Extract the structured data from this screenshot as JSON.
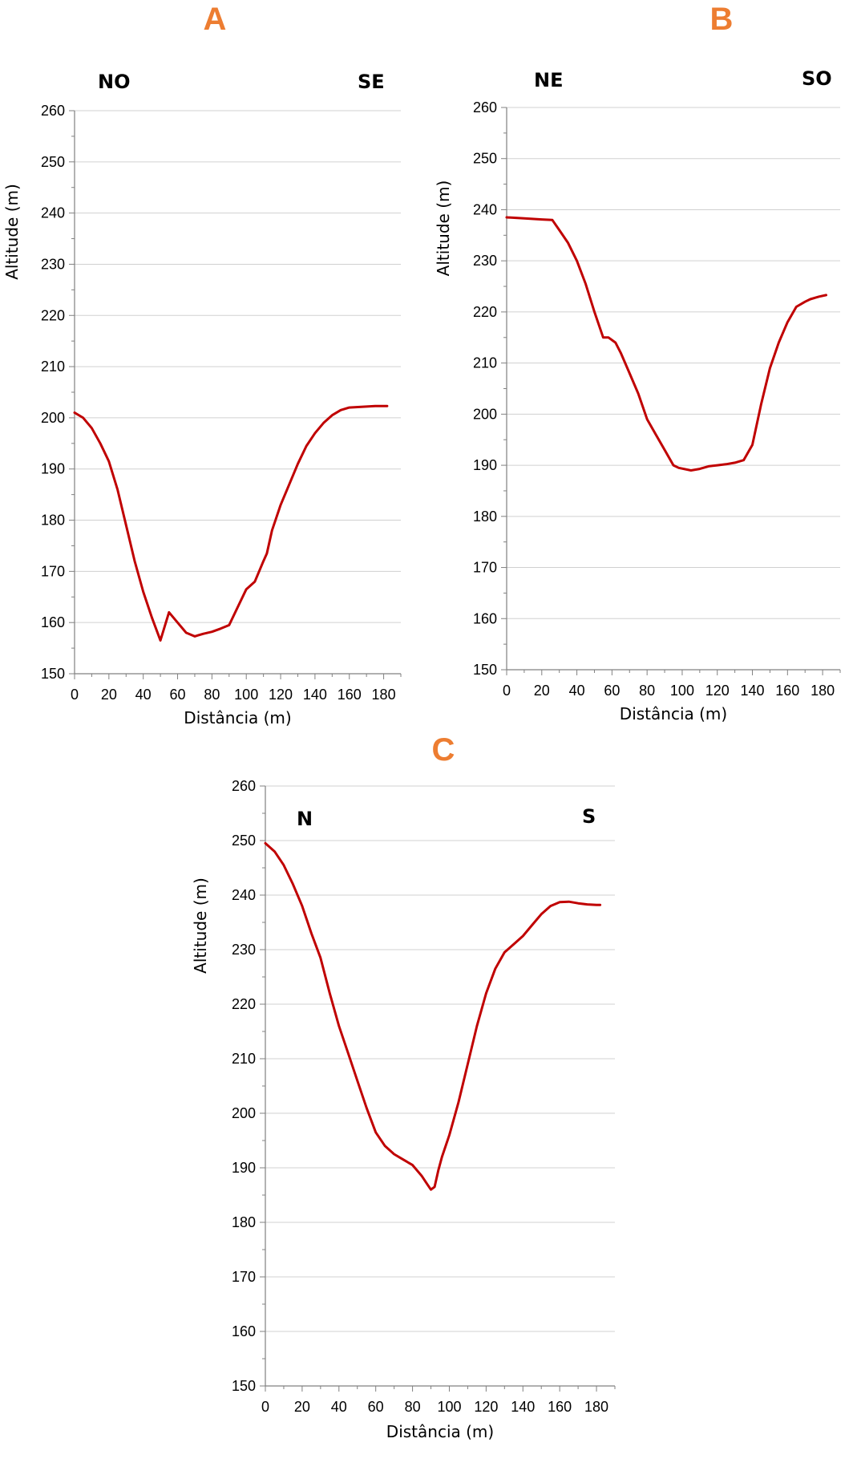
{
  "colors": {
    "line": "#C00000",
    "letter": "#ED7D31",
    "grid": "#D0D0D0",
    "axis": "#808080"
  },
  "chart_data": [
    {
      "panel": "A",
      "type": "line",
      "left_label": "NO",
      "right_label": "SE",
      "xlabel": "Distância (m)",
      "ylabel": "Altitude (m)",
      "xlim": [
        0,
        190
      ],
      "ylim": [
        150,
        260
      ],
      "xticks": [
        0,
        20,
        40,
        60,
        80,
        100,
        120,
        140,
        160,
        180
      ],
      "yticks": [
        150,
        160,
        170,
        180,
        190,
        200,
        210,
        220,
        230,
        240,
        250,
        260
      ],
      "grid": true,
      "series": [
        {
          "x": [
            0,
            5,
            10,
            15,
            20,
            25,
            30,
            35,
            40,
            45,
            50,
            55,
            60,
            65,
            70,
            72,
            75,
            80,
            85,
            90,
            95,
            100,
            105,
            110,
            112,
            115,
            120,
            125,
            130,
            135,
            140,
            145,
            150,
            155,
            160,
            165,
            170,
            175,
            180,
            182
          ],
          "y": [
            201,
            200,
            198,
            195,
            191.5,
            186,
            179,
            172,
            166,
            161,
            156.5,
            162,
            160,
            158,
            157.3,
            157.5,
            157.8,
            158.2,
            158.8,
            159.5,
            163,
            166.5,
            168,
            172,
            173.5,
            178,
            183,
            187,
            191,
            194.5,
            197,
            199,
            200.5,
            201.5,
            202,
            202.1,
            202.2,
            202.3,
            202.3,
            202.3
          ]
        }
      ]
    },
    {
      "panel": "B",
      "type": "line",
      "left_label": "NE",
      "right_label": "SO",
      "xlabel": "Distância (m)",
      "ylabel": "Altitude (m)",
      "xlim": [
        0,
        190
      ],
      "ylim": [
        150,
        260
      ],
      "xticks": [
        0,
        20,
        40,
        60,
        80,
        100,
        120,
        140,
        160,
        180
      ],
      "yticks": [
        150,
        160,
        170,
        180,
        190,
        200,
        210,
        220,
        230,
        240,
        250,
        260
      ],
      "grid": true,
      "series": [
        {
          "x": [
            0,
            10,
            20,
            26,
            30,
            35,
            40,
            45,
            50,
            55,
            58,
            62,
            65,
            70,
            75,
            80,
            85,
            90,
            95,
            98,
            105,
            110,
            115,
            120,
            125,
            130,
            135,
            140,
            145,
            150,
            155,
            160,
            165,
            170,
            173,
            178,
            182
          ],
          "y": [
            238.5,
            238.3,
            238.1,
            238,
            236,
            233.5,
            230,
            225.5,
            220,
            215,
            215,
            214,
            212,
            208,
            204,
            199,
            196,
            193,
            190,
            189.5,
            189,
            189.3,
            189.8,
            190,
            190.2,
            190.5,
            191,
            194,
            202,
            209,
            214,
            218,
            221,
            222,
            222.5,
            223,
            223.3
          ]
        }
      ]
    },
    {
      "panel": "C",
      "type": "line",
      "left_label": "N",
      "right_label": "S",
      "xlabel": "Distância (m)",
      "ylabel": "Altitude (m)",
      "xlim": [
        0,
        190
      ],
      "ylim": [
        150,
        260
      ],
      "xticks": [
        0,
        20,
        40,
        60,
        80,
        100,
        120,
        140,
        160,
        180
      ],
      "yticks": [
        150,
        160,
        170,
        180,
        190,
        200,
        210,
        220,
        230,
        240,
        250,
        260
      ],
      "grid": true,
      "series": [
        {
          "x": [
            0,
            5,
            10,
            15,
            20,
            25,
            30,
            35,
            40,
            45,
            50,
            55,
            60,
            65,
            70,
            75,
            80,
            85,
            88,
            90,
            92,
            94,
            96,
            100,
            105,
            110,
            115,
            120,
            125,
            130,
            135,
            140,
            145,
            150,
            155,
            160,
            165,
            170,
            175,
            180,
            182
          ],
          "y": [
            249.5,
            248,
            245.5,
            242,
            238,
            233,
            228.5,
            222,
            216,
            211,
            206,
            201,
            196.5,
            194,
            192.5,
            191.5,
            190.5,
            188.5,
            187,
            186,
            186.5,
            189.5,
            192,
            196,
            202,
            209,
            216,
            222,
            226.5,
            229.5,
            231,
            232.5,
            234.5,
            236.5,
            238,
            238.7,
            238.8,
            238.5,
            238.3,
            238.2,
            238.2
          ]
        }
      ]
    }
  ]
}
